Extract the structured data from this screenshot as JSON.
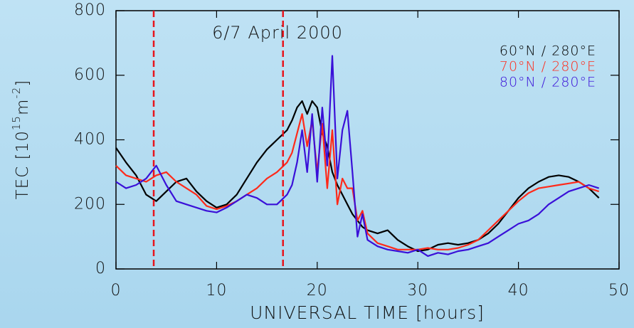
{
  "chart_data": {
    "type": "line",
    "title": "6/7 April 2000",
    "xlabel": "UNIVERSAL TIME [hours]",
    "ylabel_parts": [
      "TEC [10",
      "15",
      "m",
      "-2",
      "]"
    ],
    "x": [
      0,
      1,
      2,
      3,
      4,
      5,
      6,
      7,
      8,
      9,
      10,
      11,
      12,
      13,
      14,
      15,
      16,
      17,
      17.5,
      18,
      18.5,
      19,
      19.5,
      20,
      20.5,
      21,
      21.5,
      22,
      22.5,
      23,
      23.5,
      24,
      24.5,
      25,
      26,
      27,
      28,
      29,
      30,
      31,
      32,
      33,
      34,
      35,
      36,
      37,
      38,
      39,
      40,
      41,
      42,
      43,
      44,
      45,
      46,
      47,
      48
    ],
    "series": [
      {
        "name": "60°N / 280°E",
        "color": "#000000",
        "values": [
          375,
          330,
          290,
          230,
          210,
          240,
          270,
          280,
          240,
          210,
          190,
          200,
          230,
          280,
          330,
          370,
          400,
          430,
          460,
          500,
          520,
          480,
          520,
          500,
          420,
          380,
          300,
          260,
          230,
          200,
          170,
          150,
          130,
          120,
          110,
          120,
          90,
          70,
          55,
          60,
          75,
          80,
          75,
          80,
          90,
          110,
          140,
          180,
          220,
          250,
          270,
          285,
          290,
          285,
          270,
          250,
          220
        ]
      },
      {
        "name": "70°N / 280°E",
        "color": "#ff2a1a",
        "values": [
          320,
          290,
          280,
          270,
          290,
          300,
          270,
          250,
          230,
          195,
          185,
          195,
          210,
          230,
          250,
          280,
          300,
          330,
          360,
          420,
          480,
          380,
          460,
          300,
          450,
          250,
          430,
          200,
          280,
          250,
          250,
          150,
          180,
          110,
          80,
          70,
          60,
          60,
          60,
          65,
          60,
          60,
          65,
          75,
          90,
          120,
          150,
          180,
          210,
          235,
          250,
          255,
          260,
          265,
          270,
          250,
          240
        ]
      },
      {
        "name": "80°N / 280°E",
        "color": "#3a10d8",
        "values": [
          270,
          250,
          260,
          280,
          320,
          260,
          210,
          200,
          190,
          180,
          175,
          190,
          210,
          230,
          220,
          200,
          200,
          230,
          260,
          330,
          430,
          300,
          480,
          270,
          500,
          320,
          660,
          280,
          430,
          490,
          300,
          100,
          170,
          90,
          70,
          60,
          55,
          50,
          60,
          40,
          50,
          45,
          55,
          60,
          70,
          80,
          100,
          120,
          140,
          150,
          170,
          200,
          220,
          240,
          250,
          260,
          250
        ]
      }
    ],
    "vlines": [
      3.75,
      16.6
    ],
    "vline_color": "#e8141c",
    "xlim": [
      0,
      50
    ],
    "xticks": [
      0,
      10,
      20,
      30,
      40,
      50
    ],
    "ylim": [
      0,
      800
    ],
    "yticks": [
      0,
      200,
      400,
      600,
      800
    ]
  }
}
